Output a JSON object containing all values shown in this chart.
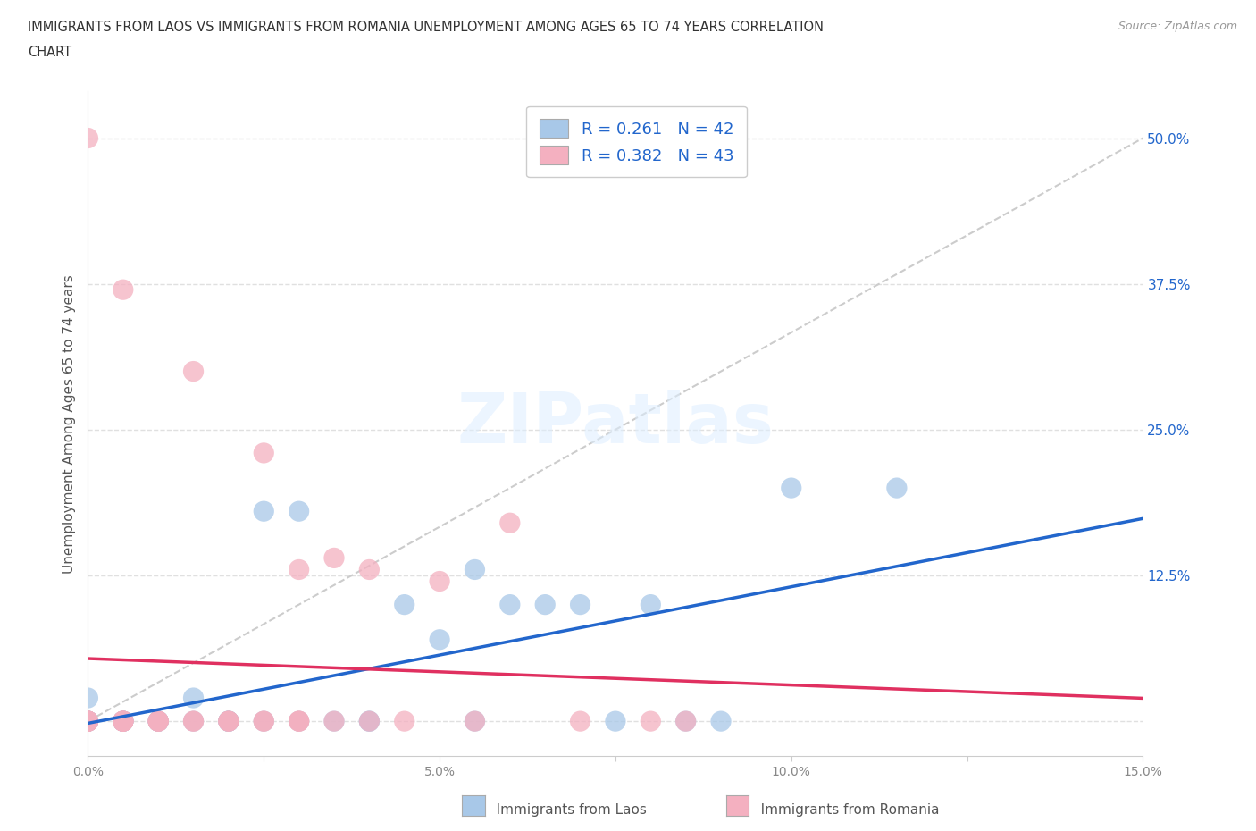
{
  "title_line1": "IMMIGRANTS FROM LAOS VS IMMIGRANTS FROM ROMANIA UNEMPLOYMENT AMONG AGES 65 TO 74 YEARS CORRELATION",
  "title_line2": "CHART",
  "source_text": "Source: ZipAtlas.com",
  "ylabel": "Unemployment Among Ages 65 to 74 years",
  "xlim": [
    0.0,
    0.15
  ],
  "ylim": [
    -0.03,
    0.54
  ],
  "xticks": [
    0.0,
    0.025,
    0.05,
    0.075,
    0.1,
    0.125,
    0.15
  ],
  "xticklabels": [
    "0.0%",
    "",
    "5.0%",
    "",
    "10.0%",
    "",
    "15.0%"
  ],
  "ytick_positions": [
    0.0,
    0.125,
    0.25,
    0.375,
    0.5
  ],
  "ytick_labels": [
    "",
    "12.5%",
    "25.0%",
    "37.5%",
    "50.0%"
  ],
  "laos_color": "#a8c8e8",
  "romania_color": "#f4b0c0",
  "laos_line_color": "#2266cc",
  "romania_line_color": "#e03060",
  "diagonal_color": "#cccccc",
  "R_laos": 0.261,
  "N_laos": 42,
  "R_romania": 0.382,
  "N_romania": 43,
  "legend_label_laos": "Immigrants from Laos",
  "legend_label_romania": "Immigrants from Romania",
  "watermark": "ZIPatlas",
  "laos_x": [
    0.0,
    0.0,
    0.0,
    0.0,
    0.0,
    0.0,
    0.0,
    0.005,
    0.005,
    0.005,
    0.005,
    0.005,
    0.01,
    0.01,
    0.01,
    0.01,
    0.015,
    0.015,
    0.02,
    0.02,
    0.02,
    0.02,
    0.025,
    0.025,
    0.03,
    0.03,
    0.035,
    0.04,
    0.04,
    0.045,
    0.05,
    0.055,
    0.055,
    0.06,
    0.065,
    0.07,
    0.075,
    0.08,
    0.085,
    0.09,
    0.1,
    0.115
  ],
  "laos_y": [
    0.0,
    0.0,
    0.0,
    0.0,
    0.0,
    0.0,
    0.02,
    0.0,
    0.0,
    0.0,
    0.0,
    0.0,
    0.0,
    0.0,
    0.0,
    0.0,
    0.0,
    0.02,
    0.0,
    0.0,
    0.0,
    0.0,
    0.0,
    0.18,
    0.0,
    0.18,
    0.0,
    0.0,
    0.0,
    0.1,
    0.07,
    0.0,
    0.13,
    0.1,
    0.1,
    0.1,
    0.0,
    0.1,
    0.0,
    0.0,
    0.2,
    0.2
  ],
  "romania_x": [
    0.0,
    0.0,
    0.0,
    0.0,
    0.0,
    0.0,
    0.0,
    0.0,
    0.005,
    0.005,
    0.005,
    0.005,
    0.005,
    0.005,
    0.005,
    0.01,
    0.01,
    0.01,
    0.01,
    0.015,
    0.015,
    0.015,
    0.02,
    0.02,
    0.02,
    0.025,
    0.025,
    0.025,
    0.03,
    0.03,
    0.03,
    0.03,
    0.035,
    0.035,
    0.04,
    0.04,
    0.045,
    0.05,
    0.055,
    0.06,
    0.07,
    0.08,
    0.085
  ],
  "romania_y": [
    0.0,
    0.0,
    0.0,
    0.0,
    0.0,
    0.0,
    0.0,
    0.5,
    0.0,
    0.0,
    0.0,
    0.0,
    0.0,
    0.0,
    0.37,
    0.0,
    0.0,
    0.0,
    0.0,
    0.0,
    0.0,
    0.3,
    0.0,
    0.0,
    0.0,
    0.0,
    0.0,
    0.23,
    0.0,
    0.0,
    0.13,
    0.0,
    0.14,
    0.0,
    0.13,
    0.0,
    0.0,
    0.12,
    0.0,
    0.17,
    0.0,
    0.0,
    0.0
  ],
  "background_color": "#ffffff",
  "grid_color": "#e0e0e0"
}
